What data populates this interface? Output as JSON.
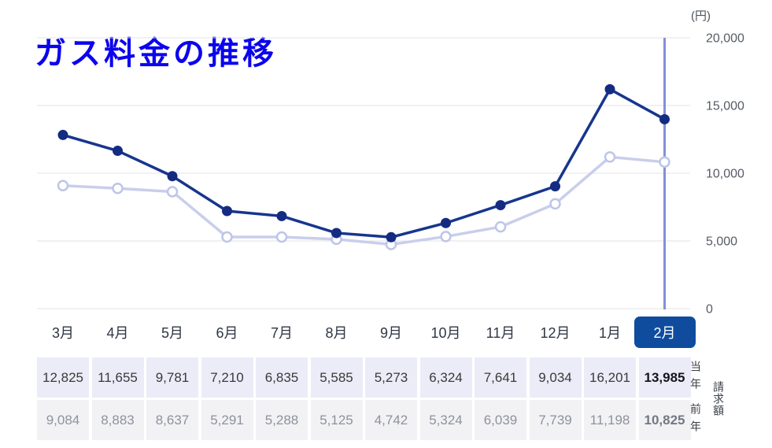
{
  "title": "ガス料金の推移",
  "selected_month": "2月",
  "colors": {
    "title_color": "#0b04ee",
    "selected_tab_bg": "#0f4c9e",
    "current_row_bg": "#ebecf7",
    "previous_row_bg": "#f2f2f5"
  },
  "chart_data": {
    "type": "line",
    "unit_label": "(円)",
    "categories": [
      "3月",
      "4月",
      "5月",
      "6月",
      "7月",
      "8月",
      "9月",
      "10月",
      "11月",
      "12月",
      "1月",
      "2月"
    ],
    "series": [
      {
        "name": "当年",
        "values": [
          12825,
          11655,
          9781,
          7210,
          6835,
          5585,
          5273,
          6324,
          7641,
          9034,
          16201,
          13985
        ],
        "line_color": "#16368d",
        "dot_fill": "#142b82",
        "dot_style": "filled"
      },
      {
        "name": "前年",
        "values": [
          9084,
          8883,
          8637,
          5291,
          5288,
          5125,
          4742,
          5324,
          6039,
          7739,
          11198,
          10825
        ],
        "line_color": "#c9ceec",
        "dot_fill": "#ffffff",
        "dot_stroke": "#bec5e8",
        "dot_style": "open"
      }
    ],
    "ylim": [
      0,
      20000
    ],
    "yticks": [
      0,
      5000,
      10000,
      15000,
      20000
    ],
    "ytick_labels": [
      "0",
      "5,000",
      "10,000",
      "15,000",
      "20,000"
    ],
    "grid": true,
    "grid_color": "#e3e3e7",
    "ytick_text_color": "#565b64",
    "highlight": {
      "category": "2月",
      "line_color": "#8390d9"
    },
    "legend_position": "none"
  },
  "table": {
    "rows": [
      {
        "label": "当年",
        "values": [
          "12,825",
          "11,655",
          "9,781",
          "7,210",
          "6,835",
          "5,585",
          "5,273",
          "6,324",
          "7,641",
          "9,034",
          "16,201",
          "13,985"
        ]
      },
      {
        "label": "前年",
        "values": [
          "9,084",
          "8,883",
          "8,637",
          "5,291",
          "5,288",
          "5,125",
          "4,742",
          "5,324",
          "6,039",
          "7,739",
          "11,198",
          "10,825"
        ]
      }
    ],
    "side_caption": "請求額"
  }
}
